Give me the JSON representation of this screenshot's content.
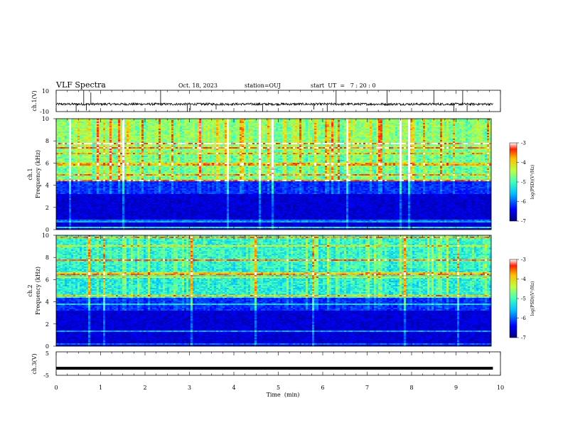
{
  "header": {
    "title": "VLF Spectra",
    "date": "Oct. 18, 2023",
    "station": "station=OUJ",
    "start": "start  UT  =   7 : 20 : 0"
  },
  "chart_data": [
    {
      "type": "line",
      "panel": "ch1",
      "ylabel": "ch.1(V)",
      "ylim": [
        -10,
        10
      ],
      "yticks": [
        10,
        -10
      ],
      "baseline": -3,
      "spikes": [
        {
          "x": 0.45,
          "y": -10
        },
        {
          "x": 0.62,
          "y": 10
        },
        {
          "x": 0.68,
          "y": -9
        },
        {
          "x": 0.78,
          "y": 8
        },
        {
          "x": 2.35,
          "y": 10
        },
        {
          "x": 2.95,
          "y": -10
        },
        {
          "x": 3.02,
          "y": -9
        },
        {
          "x": 3.6,
          "y": -8
        },
        {
          "x": 4.65,
          "y": -10
        },
        {
          "x": 5.8,
          "y": -8
        },
        {
          "x": 6.1,
          "y": -10
        },
        {
          "x": 6.3,
          "y": 10
        },
        {
          "x": 7.45,
          "y": 10
        },
        {
          "x": 8.5,
          "y": 10
        },
        {
          "x": 8.95,
          "y": -10
        },
        {
          "x": 9.15,
          "y": 10
        },
        {
          "x": 9.25,
          "y": -9
        }
      ]
    },
    {
      "type": "heatmap",
      "panel": "ch1",
      "ylabel": "Frequency (kHz)",
      "channel": "ch.1",
      "ylim": [
        0,
        10
      ],
      "yticks": [
        0,
        2,
        4,
        6,
        8,
        10
      ],
      "colorbar": {
        "label": "log(PSD)(V²/Hz)",
        "range": [
          -7,
          -3
        ],
        "ticks": [
          "-3",
          "-4",
          "-5",
          "-6",
          "-7"
        ]
      }
    },
    {
      "type": "heatmap",
      "panel": "ch2",
      "ylabel": "Frequency (kHz)",
      "channel": "ch.2",
      "ylim": [
        0,
        10
      ],
      "yticks": [
        0,
        2,
        4,
        6,
        8,
        10
      ],
      "colorbar": {
        "label": "log(PSD)(V²/Hz)",
        "range": [
          -7,
          -3
        ],
        "ticks": [
          "-3",
          "-4",
          "-5",
          "-6",
          "-7"
        ]
      }
    },
    {
      "type": "line",
      "panel": "ch3",
      "ylabel": "ch.3(V)",
      "ylim": [
        -5,
        5
      ],
      "yticks": [
        5,
        -5
      ],
      "value": -2
    }
  ],
  "xaxis": {
    "label": "Time  (min)",
    "xlim": [
      0,
      10
    ],
    "ticks": [
      "0",
      "1",
      "2",
      "3",
      "4",
      "5",
      "6",
      "7",
      "8",
      "9",
      "10"
    ]
  }
}
